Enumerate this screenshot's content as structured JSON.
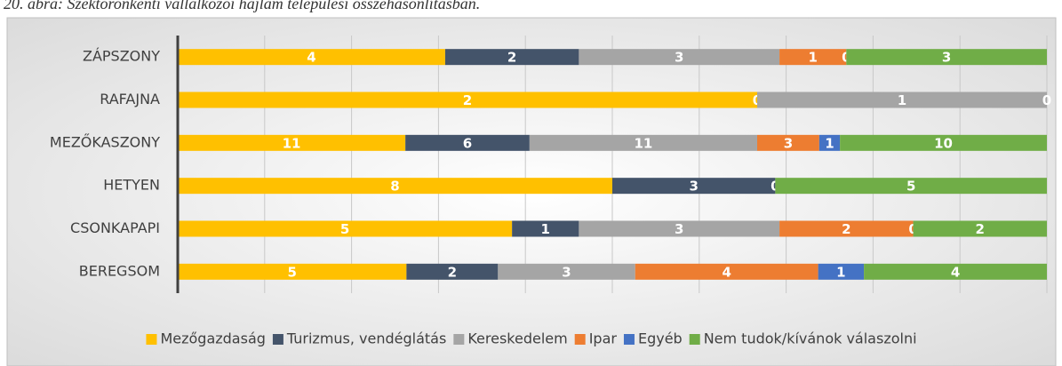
{
  "chart_data": {
    "type": "stacked_bar_100",
    "title": "20. ábra: Szektoronkénti vállalkozói hajlam települési összehasonlításban.",
    "categories": [
      "ZÁPSZONY",
      "RAFAJNA",
      "MEZŐKASZONY",
      "HETYEN",
      "CSONKAPAPI",
      "BEREGSOM"
    ],
    "series": [
      {
        "name": "Mezőgazdaság",
        "color": "#ffc000",
        "values": [
          4,
          2,
          11,
          8,
          5,
          5
        ]
      },
      {
        "name": "Turizmus, vendéglátás",
        "color": "#44546a",
        "values": [
          2,
          0,
          6,
          3,
          1,
          2
        ]
      },
      {
        "name": "Kereskedelem",
        "color": "#a5a5a5",
        "values": [
          3,
          1,
          11,
          0,
          3,
          3
        ]
      },
      {
        "name": "Ipar",
        "color": "#ed7d31",
        "values": [
          1,
          null,
          3,
          null,
          2,
          4
        ]
      },
      {
        "name": "Egyéb",
        "color": "#4472c4",
        "values": [
          0,
          null,
          1,
          null,
          0,
          1
        ]
      },
      {
        "name": "Nem tudok/kívánok válaszolni",
        "color": "#70ad47",
        "values": [
          3,
          0,
          10,
          5,
          2,
          4
        ]
      }
    ],
    "xlim": [
      0,
      100
    ],
    "xticks": [
      0,
      10,
      20,
      30,
      40,
      50,
      60,
      70,
      80,
      90,
      100
    ],
    "grid": true,
    "legend": "bottom"
  }
}
